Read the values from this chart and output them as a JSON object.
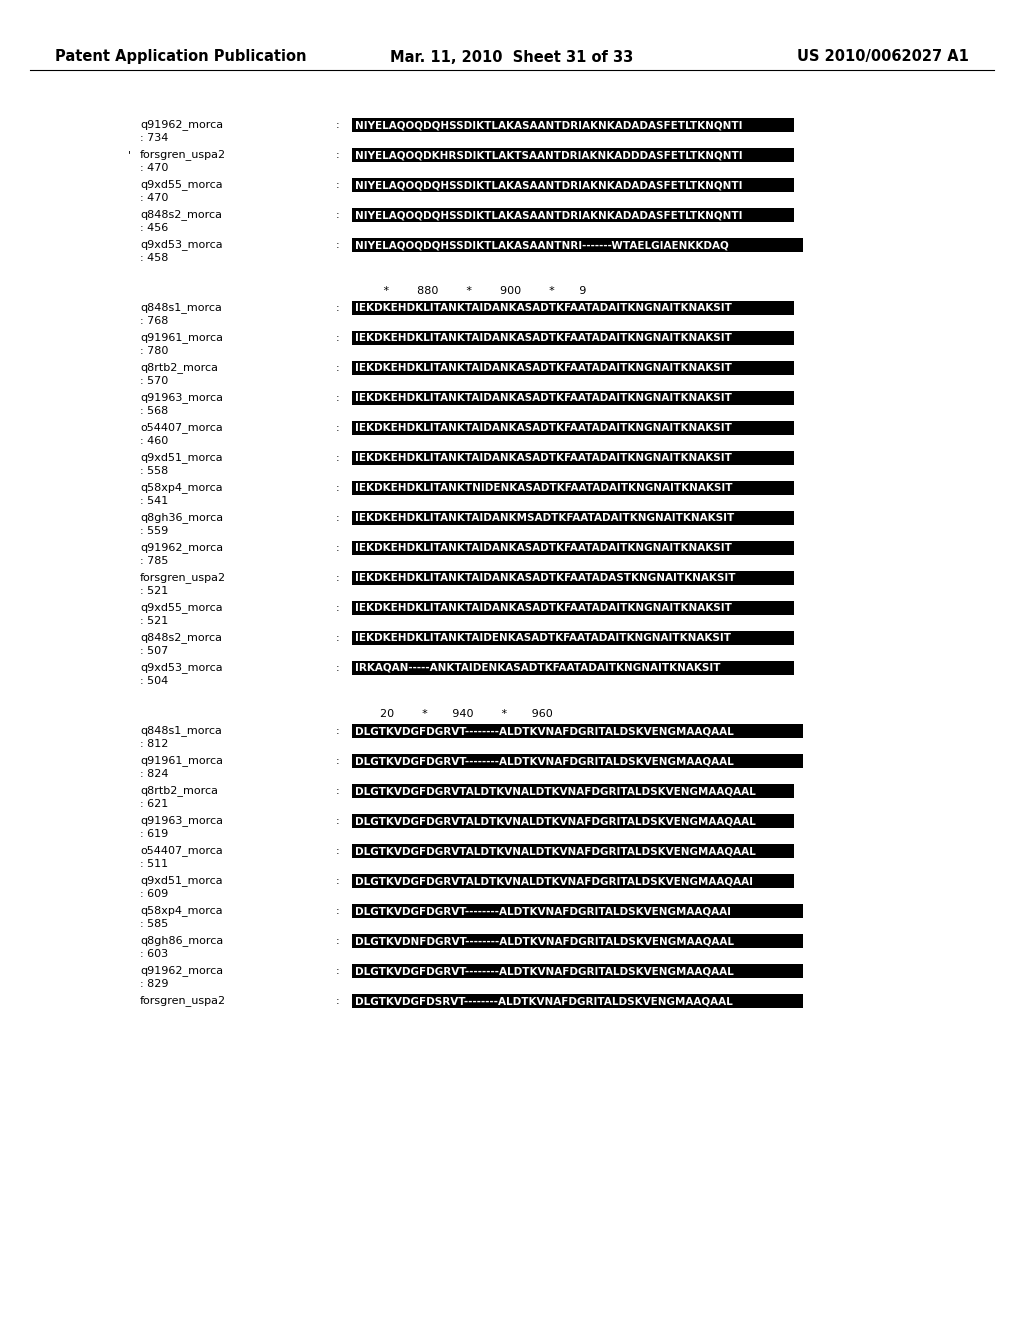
{
  "header_left": "Patent Application Publication",
  "header_center": "Mar. 11, 2010  Sheet 31 of 33",
  "header_right": "US 2010/0062027 A1",
  "bg_color": "#f0f0f0",
  "page_bg": "white",
  "section1": {
    "ruler": null,
    "entries": [
      {
        "name": "q91962_morca",
        "num": ": 734",
        "seq": "NIYELAQOQDQHSSDIKTLAKASAANTDRIAKNKADADASFETLTKNQNTI",
        "note": ""
      },
      {
        "name": "forsgren_uspa2",
        "num": ": 470",
        "seq": "NIYELAQOQDKHRSDIKTLAKTSAANTDRIAKNKADDDASFETLTKNQNTI",
        "note": "'"
      },
      {
        "name": "q9xd55_morca",
        "num": ": 470",
        "seq": "NIYELAQOQDQHSSDIKTLAKASAANTDRIAKNKADADASFETLTKNQNTI",
        "note": ""
      },
      {
        "name": "q848s2_morca",
        "num": ": 456",
        "seq": "NIYELAQOQDQHSSDIKTLAKASAANTDRIAKNKADADASFETLTKNQNTI",
        "note": ""
      },
      {
        "name": "q9xd53_morca",
        "num": ": 458",
        "seq": "NIYELAQOQDQHSSDIKTLAKASAANTNRI-------WTAELGIAENKKDAQ",
        "note": ""
      }
    ]
  },
  "section2": {
    "ruler": "         *        880        *        900        *       9",
    "entries": [
      {
        "name": "q848s1_morca",
        "num": ": 768",
        "seq": "IEKDKEHDKLITANKTAIDANKASADTKFAATADAITKNGNAITKNAKSIT",
        "note": ""
      },
      {
        "name": "q91961_morca",
        "num": ": 780",
        "seq": "IEKDKEHDKLITANKTAIDANKASADTKFAATADAITKNGNAITKNAKSIT",
        "note": ""
      },
      {
        "name": "q8rtb2_morca",
        "num": ": 570",
        "seq": "IEKDKEHDKLITANKTAIDANKASADTKFAATADAITKNGNAITKNAKSIT",
        "note": ""
      },
      {
        "name": "q91963_morca",
        "num": ": 568",
        "seq": "IEKDKEHDKLITANKTAIDANKASADTKFAATADAITKNGNAITKNAKSIT",
        "note": ""
      },
      {
        "name": "o54407_morca",
        "num": ": 460",
        "seq": "IEKDKEHDKLITANKTAIDANKASADTKFAATADAITKNGNAITKNAKSIT",
        "note": ""
      },
      {
        "name": "q9xd51_morca",
        "num": ": 558",
        "seq": "IEKDKEHDKLITANKTAIDANKASADTKFAATADAITKNGNAITKNAKSIT",
        "note": ""
      },
      {
        "name": "q58xp4_morca",
        "num": ": 541",
        "seq": "IEKDKEHDKLITANKTNIDENKASADTKFAATADAITKNGNAITKNAKSIT",
        "note": ""
      },
      {
        "name": "q8gh36_morca",
        "num": ": 559",
        "seq": "IEKDKEHDKLITANKTAIDANKMSADTKFAATADAITKNGNAITKNAKSIT",
        "note": ""
      },
      {
        "name": "q91962_morca",
        "num": ": 785",
        "seq": "IEKDKEHDKLITANKTAIDANKASADTKFAATADAITKNGNAITKNAKSIT",
        "note": ""
      },
      {
        "name": "forsgren_uspa2",
        "num": ": 521",
        "seq": "IEKDKEHDKLITANKTAIDANKASADTKFAATADASTKNGNAITKNAKSIT",
        "note": ""
      },
      {
        "name": "q9xd55_morca",
        "num": ": 521",
        "seq": "IEKDKEHDKLITANKTAIDANKASADTKFAATADAITKNGNAITKNAKSIT",
        "note": ""
      },
      {
        "name": "q848s2_morca",
        "num": ": 507",
        "seq": "IEKDKEHDKLITANKTAIDENKASADTKFAATADAITKNGNAITKNAKSIT",
        "note": ""
      },
      {
        "name": "q9xd53_morca",
        "num": ": 504",
        "seq": "IRKAQAN-----ANKTAIDENKASADTKFAATADAITKNGNAITKNAKSIT",
        "note": ""
      }
    ]
  },
  "section3": {
    "ruler": "        20        *       940        *       960",
    "entries": [
      {
        "name": "q848s1_morca",
        "num": ": 812",
        "seq": "DLGTKVDGFDGRVT--------ALDTKVNAFDGRITALDSKVENGMAAQAAL",
        "note": ""
      },
      {
        "name": "q91961_morca",
        "num": ": 824",
        "seq": "DLGTKVDGFDGRVT--------ALDTKVNAFDGRITALDSKVENGMAAQAAL",
        "note": ""
      },
      {
        "name": "q8rtb2_morca",
        "num": ": 621",
        "seq": "DLGTKVDGFDGRVTALDTKVNALDTKVNAFDGRITALDSKVENGMAAQAAL",
        "note": ""
      },
      {
        "name": "q91963_morca",
        "num": ": 619",
        "seq": "DLGTKVDGFDGRVTALDTKVNALDTKVNAFDGRITALDSKVENGMAAQAAL",
        "note": ""
      },
      {
        "name": "o54407_morca",
        "num": ": 511",
        "seq": "DLGTKVDGFDGRVTALDTKVNALDTKVNAFDGRITALDSKVENGMAAQAAL",
        "note": ""
      },
      {
        "name": "q9xd51_morca",
        "num": ": 609",
        "seq": "DLGTKVDGFDGRVTALDTKVNALDTKVNAFDGRITALDSKVENGMAAQAAI",
        "note": ""
      },
      {
        "name": "q58xp4_morca",
        "num": ": 585",
        "seq": "DLGTKVDGFDGRVT--------ALDTKVNAFDGRITALDSKVENGMAAQAAI",
        "note": ""
      },
      {
        "name": "q8gh86_morca",
        "num": ": 603",
        "seq": "DLGTKVDNFDGRVT--------ALDTKVNAFDGRITALDSKVENGMAAQAAL",
        "note": ""
      },
      {
        "name": "q91962_morca",
        "num": ": 829",
        "seq": "DLGTKVDGFDGRVT--------ALDTKVNAFDGRITALDSKVENGMAAQAAL",
        "note": ""
      },
      {
        "name": "forsgren_uspa2",
        "num": "",
        "seq": "DLGTKVDGFDSRVT--------ALDTKVNAFDGRITALDSKVENGMAAQAAL",
        "note": ""
      }
    ]
  }
}
